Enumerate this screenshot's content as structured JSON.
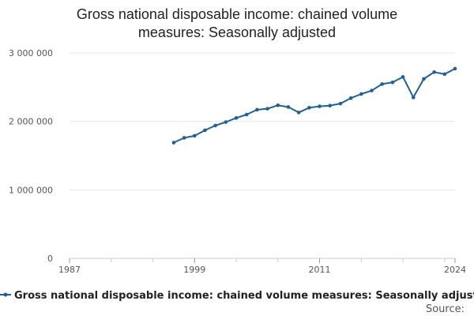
{
  "chart_data": {
    "type": "line",
    "title_lines": [
      "Gross national disposable income: chained volume",
      "measures: Seasonally adjusted"
    ],
    "xlabel": "",
    "ylabel": "",
    "xlim": [
      1987,
      2024
    ],
    "ylim": [
      0,
      3000000
    ],
    "x_ticks": [
      1987,
      1999,
      2011,
      2024
    ],
    "x_tick_labels": [
      "1987",
      "1999",
      "2011",
      "2024"
    ],
    "y_ticks": [
      0,
      1000000,
      2000000,
      3000000
    ],
    "y_tick_labels": [
      "0",
      "1 000 000",
      "2 000 000",
      "3 000 000"
    ],
    "grid": true,
    "legend_position": "bottom",
    "series": [
      {
        "name": "Gross national disposable income: chained volume measures: Seasonally adjusted",
        "color": "#206095",
        "x": [
          1997,
          1998,
          1999,
          2000,
          2001,
          2002,
          2003,
          2004,
          2005,
          2006,
          2007,
          2008,
          2009,
          2010,
          2011,
          2012,
          2013,
          2014,
          2015,
          2016,
          2017,
          2018,
          2019,
          2020,
          2021,
          2022,
          2023,
          2024
        ],
        "values": [
          1690000,
          1760000,
          1790000,
          1870000,
          1940000,
          1990000,
          2050000,
          2100000,
          2170000,
          2185000,
          2235000,
          2210000,
          2130000,
          2200000,
          2220000,
          2230000,
          2260000,
          2340000,
          2400000,
          2450000,
          2545000,
          2570000,
          2650000,
          2350000,
          2620000,
          2720000,
          2690000,
          2770000
        ]
      }
    ],
    "source_label": "Source:"
  }
}
